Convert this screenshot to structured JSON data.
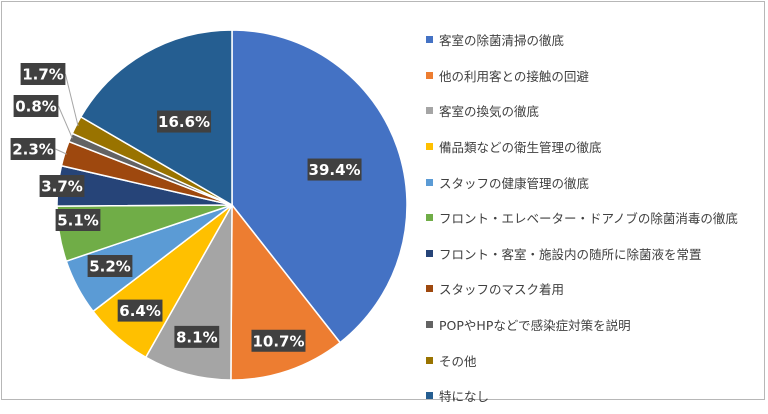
{
  "chart_data": {
    "type": "pie",
    "title": "",
    "categories": [
      "客室の除菌清掃の徹底",
      "他の利用客との接触の回避",
      "客室の換気の徹底",
      "備品類などの衛生管理の徹底",
      "スタッフの健康管理の徹底",
      "フロント・エレベーター・ドアノブの除菌消毒の徹底",
      "フロント・客室・施設内の随所に除菌液を常置",
      "スタッフのマスク着用",
      "POPやHPなどで感染症対策を説明",
      "その他",
      "特になし"
    ],
    "values": [
      39.4,
      10.7,
      8.1,
      6.4,
      5.2,
      5.1,
      3.7,
      2.3,
      0.8,
      1.7,
      16.6
    ],
    "labels": [
      "39.4%",
      "10.7%",
      "8.1%",
      "6.4%",
      "5.2%",
      "5.1%",
      "3.7%",
      "2.3%",
      "0.8%",
      "1.7%",
      "16.6%"
    ],
    "colors": [
      "#4472C4",
      "#ED7D31",
      "#A5A5A5",
      "#FFC000",
      "#5B9BD5",
      "#70AD47",
      "#264478",
      "#9E480E",
      "#636363",
      "#997300",
      "#255E91"
    ],
    "start_angle_deg": 0,
    "direction": "clockwise",
    "legend_position": "right"
  }
}
